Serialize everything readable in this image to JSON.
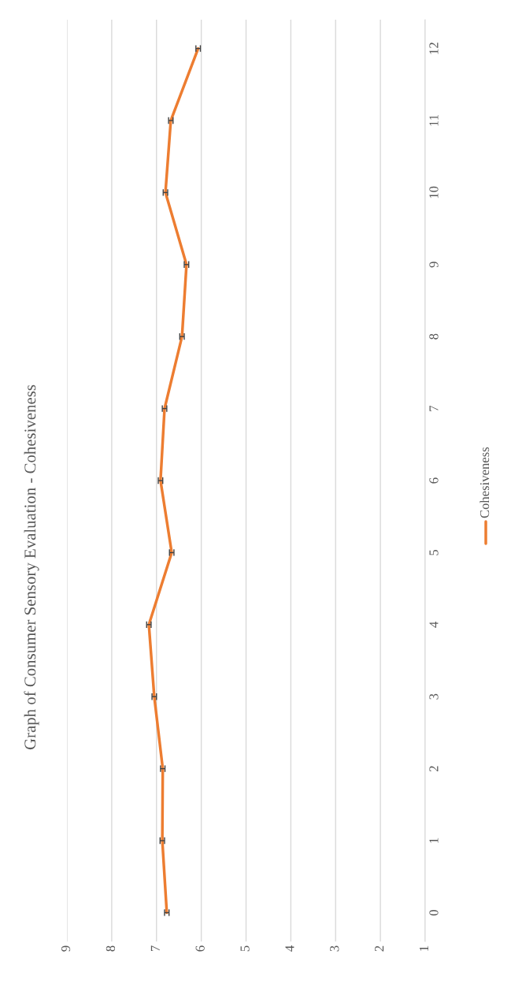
{
  "chart_data": {
    "type": "line",
    "title": "Graph of Consumer Sensory Evaluation - Cohesiveness",
    "series": [
      {
        "name": "Cohesiveness",
        "color": "#ed7d31",
        "x": [
          6.77,
          6.87,
          6.86,
          7.05,
          7.17,
          6.66,
          6.91,
          6.82,
          6.43,
          6.33,
          6.8,
          6.68,
          6.07
        ],
        "values": [
          0,
          1,
          2,
          3,
          4,
          5,
          6,
          7,
          8,
          9,
          10,
          11,
          12
        ],
        "xerrors": [
          0.05,
          0.05,
          0.05,
          0.05,
          0.05,
          0.05,
          0.05,
          0.05,
          0.05,
          0.05,
          0.05,
          0.05,
          0.05
        ]
      }
    ],
    "xlim": [
      9,
      1
    ],
    "xticks": [
      9,
      8,
      7,
      6,
      5,
      4,
      3,
      2,
      1
    ],
    "ylim": [
      -0.4,
      12.4
    ],
    "yticks": [
      0,
      1,
      2,
      3,
      4,
      5,
      6,
      7,
      8,
      9,
      10,
      11,
      12
    ],
    "grid": "x",
    "legend": "right",
    "marker": "none",
    "line_style": "solid"
  }
}
